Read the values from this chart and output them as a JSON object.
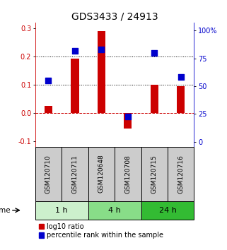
{
  "title": "GDS3433 / 24913",
  "samples": [
    "GSM120710",
    "GSM120711",
    "GSM120648",
    "GSM120708",
    "GSM120715",
    "GSM120716"
  ],
  "log10_ratio": [
    0.025,
    0.193,
    0.29,
    -0.055,
    0.1,
    0.095
  ],
  "percentile_rank": [
    55,
    82,
    83,
    23,
    80,
    58
  ],
  "ylim_left": [
    -0.12,
    0.32
  ],
  "ylim_right": [
    -4.36,
    107.27
  ],
  "yticks_left": [
    -0.1,
    0.0,
    0.1,
    0.2,
    0.3
  ],
  "yticks_right": [
    0,
    25,
    50,
    75,
    100
  ],
  "ytick_labels_right": [
    "0",
    "25",
    "50",
    "75",
    "100%"
  ],
  "hlines_dotted": [
    0.1,
    0.2
  ],
  "hline_zero": 0.0,
  "time_groups": [
    {
      "label": "1 h",
      "start": 0,
      "end": 2,
      "color": "#ccf0cc"
    },
    {
      "label": "4 h",
      "start": 2,
      "end": 4,
      "color": "#88dd88"
    },
    {
      "label": "24 h",
      "start": 4,
      "end": 6,
      "color": "#33bb33"
    }
  ],
  "bar_color": "#cc0000",
  "dot_color": "#0000cc",
  "bar_width": 0.3,
  "dot_size": 28,
  "zero_line_color": "#cc0000",
  "hline_color": "#000000",
  "sample_label_fontsize": 6.5,
  "time_label_fontsize": 8,
  "title_fontsize": 10,
  "legend_fontsize": 7,
  "tick_fontsize": 7,
  "background_color": "#ffffff",
  "plot_bg_color": "#ffffff",
  "sample_box_color": "#cccccc",
  "xlabel_time": "time",
  "legend_red": "log10 ratio",
  "legend_blue": "percentile rank within the sample"
}
